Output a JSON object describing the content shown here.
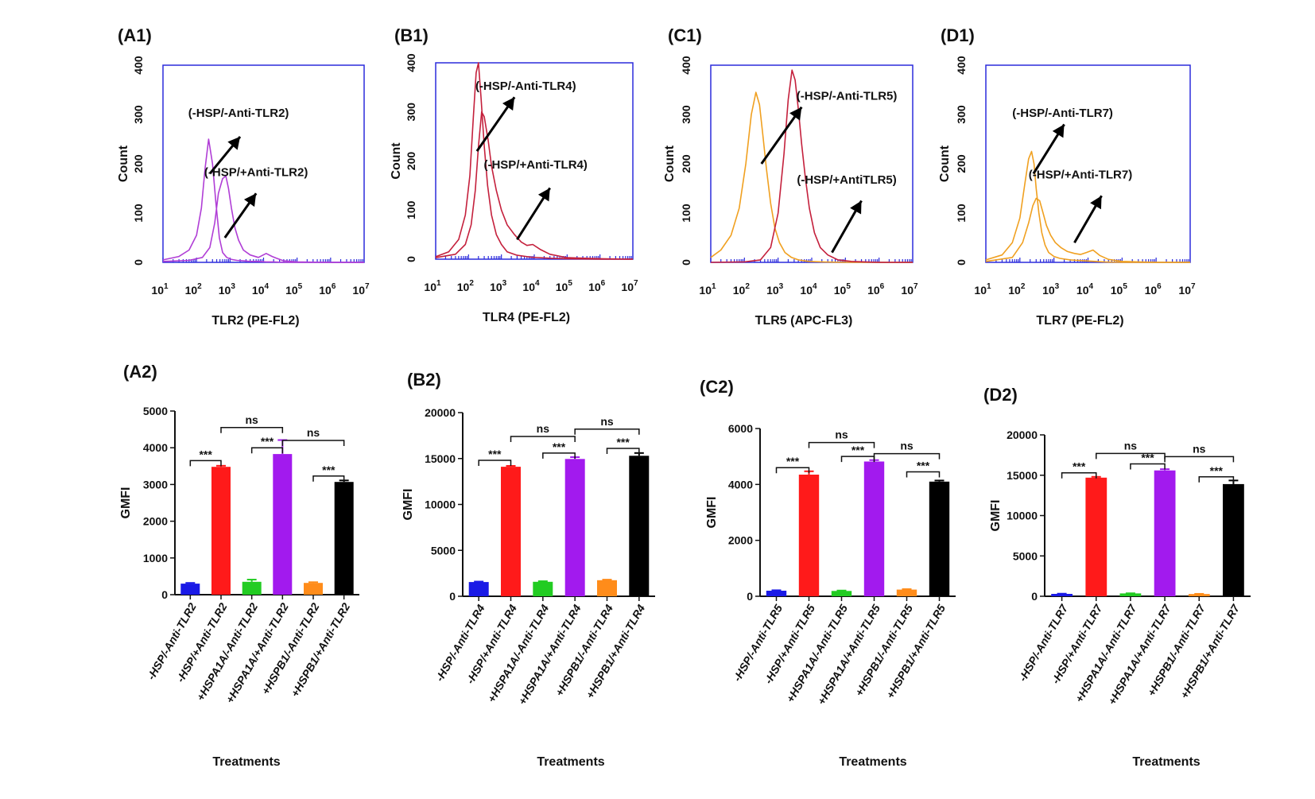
{
  "colors": {
    "frame": "#2b2bdc",
    "arrow": "#000000",
    "bar_palette": [
      "#1a1ae6",
      "#ff1a1a",
      "#22cc22",
      "#a21aee",
      "#ff8c1a",
      "#000000"
    ]
  },
  "chart_data": [
    {
      "id": "A1",
      "type": "line",
      "panel_label": "(A1)",
      "xlabel": "TLR2 (PE-FL2)",
      "ylabel": "Count",
      "x_scale": "log10",
      "xlim": [
        10,
        10000000
      ],
      "x_tick_exponents": [
        1,
        2,
        3,
        4,
        5,
        6,
        7
      ],
      "ylim": [
        0,
        400
      ],
      "y_ticks": [
        0,
        100,
        200,
        300,
        400
      ],
      "grid": false,
      "line_color": "#b03ed6",
      "series": [
        {
          "x": [
            10,
            30,
            60,
            100,
            140,
            180,
            230,
            300,
            380,
            480,
            600,
            800,
            1100,
            1600,
            2500,
            4000,
            7000,
            12000,
            20000,
            40000,
            100000,
            1000000,
            10000000
          ],
          "y": [
            5,
            12,
            25,
            55,
            110,
            190,
            250,
            200,
            120,
            50,
            20,
            10,
            6,
            4,
            3,
            2,
            2,
            1,
            1,
            0,
            0,
            0,
            0
          ]
        },
        {
          "x": [
            10,
            60,
            150,
            250,
            350,
            450,
            600,
            750,
            900,
            1100,
            1400,
            1800,
            2500,
            4000,
            7000,
            12000,
            18000,
            25000,
            40000,
            100000,
            1000000,
            10000000
          ],
          "y": [
            2,
            4,
            10,
            30,
            80,
            140,
            170,
            175,
            150,
            110,
            70,
            45,
            25,
            15,
            10,
            18,
            12,
            8,
            3,
            1,
            0,
            0
          ]
        }
      ],
      "annotations": [
        {
          "text": "(-HSP/-Anti-TLR2)",
          "x": 1800,
          "y": 295,
          "arrow_from": [
            250,
            180
          ],
          "arrow_to": [
            2000,
            255
          ]
        },
        {
          "text": "(-HSP/+Anti-TLR2)",
          "x": 6000,
          "y": 175,
          "arrow_from": [
            700,
            50
          ],
          "arrow_to": [
            6000,
            140
          ]
        }
      ]
    },
    {
      "id": "B1",
      "type": "line",
      "panel_label": "(B1)",
      "xlabel": "TLR4 (PE-FL2)",
      "ylabel": "Count",
      "x_scale": "log10",
      "xlim": [
        10,
        10000000
      ],
      "x_tick_exponents": [
        1,
        2,
        3,
        4,
        5,
        6,
        7
      ],
      "ylim": [
        0,
        400
      ],
      "y_ticks": [
        0,
        100,
        200,
        300,
        400
      ],
      "grid": false,
      "line_color": "#c4203c",
      "series": [
        {
          "x": [
            10,
            25,
            50,
            80,
            110,
            140,
            170,
            200,
            240,
            300,
            380,
            500,
            700,
            1000,
            1500,
            3000,
            8000,
            30000,
            100000,
            1000000,
            10000000
          ],
          "y": [
            5,
            15,
            40,
            90,
            170,
            290,
            380,
            400,
            330,
            230,
            150,
            90,
            50,
            30,
            15,
            8,
            4,
            2,
            1,
            0,
            0
          ]
        },
        {
          "x": [
            10,
            40,
            80,
            120,
            160,
            200,
            250,
            300,
            400,
            500,
            700,
            1000,
            1500,
            2500,
            4000,
            6000,
            9000,
            15000,
            30000,
            100000,
            1000000,
            10000000
          ],
          "y": [
            3,
            10,
            30,
            70,
            140,
            230,
            300,
            290,
            240,
            190,
            140,
            100,
            70,
            50,
            35,
            28,
            30,
            20,
            10,
            3,
            1,
            0
          ]
        }
      ],
      "annotations": [
        {
          "text": "(-HSP/-Anti-TLR4)",
          "x": 5500,
          "y": 345,
          "arrow_from": [
            180,
            220
          ],
          "arrow_to": [
            2500,
            330
          ]
        },
        {
          "text": "(-HSP/+Anti-TLR4)",
          "x": 11000,
          "y": 185,
          "arrow_from": [
            3000,
            40
          ],
          "arrow_to": [
            30000,
            145
          ]
        }
      ]
    },
    {
      "id": "C1",
      "type": "line",
      "panel_label": "(C1)",
      "xlabel": "TLR5 (APC-FL3)",
      "ylabel": "Count",
      "x_scale": "log10",
      "xlim": [
        10,
        10000000
      ],
      "x_tick_exponents": [
        1,
        2,
        3,
        4,
        5,
        6,
        7
      ],
      "ylim": [
        0,
        400
      ],
      "y_ticks": [
        0,
        100,
        200,
        300,
        400
      ],
      "grid": false,
      "series": [
        {
          "color": "#f0a020",
          "x": [
            10,
            20,
            40,
            70,
            110,
            160,
            220,
            280,
            350,
            450,
            600,
            800,
            1100,
            1600,
            2500,
            4000,
            8000,
            20000,
            100000,
            1000000,
            10000000
          ],
          "y": [
            10,
            25,
            55,
            110,
            200,
            300,
            345,
            320,
            260,
            190,
            120,
            70,
            40,
            20,
            10,
            5,
            2,
            1,
            0,
            0,
            0
          ]
        },
        {
          "color": "#c4203c",
          "x": [
            10,
            100,
            300,
            600,
            1000,
            1500,
            2000,
            2600,
            3200,
            4000,
            5000,
            6500,
            8500,
            12000,
            18000,
            30000,
            60000,
            150000,
            1000000,
            10000000
          ],
          "y": [
            0,
            1,
            5,
            30,
            100,
            220,
            330,
            390,
            370,
            310,
            240,
            170,
            110,
            60,
            30,
            15,
            5,
            2,
            0,
            0
          ]
        }
      ],
      "annotations": [
        {
          "text": "(-HSP/-Anti-TLR5)",
          "x": 110000,
          "y": 330,
          "arrow_from": [
            320,
            200
          ],
          "arrow_to": [
            5000,
            315
          ]
        },
        {
          "text": "(-HSP/+AntiTLR5)",
          "x": 110000,
          "y": 160,
          "arrow_from": [
            40000,
            20
          ],
          "arrow_to": [
            300000,
            125
          ]
        }
      ]
    },
    {
      "id": "D1",
      "type": "line",
      "panel_label": "(D1)",
      "xlabel": "TLR7 (PE-FL2)",
      "ylabel": "Count",
      "x_scale": "log10",
      "xlim": [
        10,
        10000000
      ],
      "x_tick_exponents": [
        1,
        2,
        3,
        4,
        5,
        6,
        7
      ],
      "ylim": [
        0,
        400
      ],
      "y_ticks": [
        0,
        100,
        200,
        300,
        400
      ],
      "grid": false,
      "line_color": "#f0a020",
      "series": [
        {
          "x": [
            10,
            30,
            60,
            100,
            140,
            180,
            220,
            260,
            300,
            360,
            440,
            550,
            700,
            1000,
            1500,
            3000,
            8000,
            30000,
            100000,
            1000000,
            10000000
          ],
          "y": [
            5,
            15,
            40,
            90,
            160,
            210,
            225,
            200,
            150,
            100,
            60,
            35,
            20,
            12,
            8,
            5,
            3,
            1,
            0,
            0,
            0
          ]
        },
        {
          "x": [
            10,
            60,
            120,
            180,
            240,
            300,
            380,
            480,
            600,
            800,
            1100,
            1600,
            2500,
            4000,
            6000,
            9000,
            14000,
            22000,
            40000,
            100000,
            1000000,
            10000000
          ],
          "y": [
            2,
            10,
            40,
            80,
            115,
            130,
            125,
            100,
            75,
            55,
            40,
            30,
            22,
            18,
            16,
            20,
            25,
            14,
            6,
            2,
            0,
            0
          ]
        }
      ],
      "annotations": [
        {
          "text": "(-HSP/-Anti-TLR7)",
          "x": 1800,
          "y": 295,
          "arrow_from": [
            250,
            180
          ],
          "arrow_to": [
            2000,
            280
          ]
        },
        {
          "text": "(-HSP/+Anti-TLR7)",
          "x": 6000,
          "y": 170,
          "arrow_from": [
            4000,
            40
          ],
          "arrow_to": [
            25000,
            135
          ]
        }
      ]
    },
    {
      "id": "A2",
      "type": "bar",
      "panel_label": "(A2)",
      "xlabel": "Treatments",
      "ylabel": "GMFI",
      "ylim": [
        0,
        5000
      ],
      "y_ticks": [
        0,
        1000,
        2000,
        3000,
        4000,
        5000
      ],
      "grid": false,
      "categories": [
        "-HSP/-Anti-TLR2",
        "-HSP/+Anti-TLR2",
        "+HSPA1A/-Anti-TLR2",
        "+HSPA1A/+Anti-TLR2",
        "+HSPB1/-Anti-TLR2",
        "+HSPB1/+Anti-TLR2"
      ],
      "values": [
        300,
        3480,
        350,
        3830,
        320,
        3070
      ],
      "errors": [
        20,
        30,
        60,
        380,
        20,
        40
      ],
      "significance": [
        {
          "from": 0,
          "to": 1,
          "label": "***",
          "y": 3650
        },
        {
          "from": 1,
          "to": 3,
          "label": "ns",
          "y": 4550
        },
        {
          "from": 2,
          "to": 3,
          "label": "***",
          "y": 4000
        },
        {
          "from": 3,
          "to": 5,
          "label": "ns",
          "y": 4200
        },
        {
          "from": 4,
          "to": 5,
          "label": "***",
          "y": 3230
        }
      ]
    },
    {
      "id": "B2",
      "type": "bar",
      "panel_label": "(B2)",
      "xlabel": "Treatments",
      "ylabel": "GMFI",
      "ylim": [
        0,
        20000
      ],
      "y_ticks": [
        0,
        5000,
        10000,
        15000,
        20000
      ],
      "grid": false,
      "categories": [
        "-HSP/-Anti-TLR4",
        "-HSP/+Anti-TLR4",
        "+HSPA1A/-Anti-TLR4",
        "+HSPA1A/+Anti-TLR4",
        "+HSPB1/-Anti-TLR4",
        "+HSPB1/+Anti-TLR4"
      ],
      "values": [
        1550,
        14100,
        1580,
        14950,
        1750,
        15300
      ],
      "errors": [
        50,
        100,
        60,
        200,
        60,
        300
      ],
      "significance": [
        {
          "from": 0,
          "to": 1,
          "label": "***",
          "y": 14800
        },
        {
          "from": 1,
          "to": 3,
          "label": "ns",
          "y": 17400
        },
        {
          "from": 2,
          "to": 3,
          "label": "***",
          "y": 15600
        },
        {
          "from": 3,
          "to": 5,
          "label": "ns",
          "y": 18200
        },
        {
          "from": 4,
          "to": 5,
          "label": "***",
          "y": 16100
        }
      ]
    },
    {
      "id": "C2",
      "type": "bar",
      "panel_label": "(C2)",
      "xlabel": "Treatments",
      "ylabel": "GMFI",
      "ylim": [
        0,
        6000
      ],
      "y_ticks": [
        0,
        2000,
        4000,
        6000
      ],
      "grid": false,
      "categories": [
        "-HSP/-Anti-TLR5",
        "-HSP/+Anti-TLR5",
        "+HSPA1A/-Anti-TLR5",
        "+HSPA1A/+Anti-TLR5",
        "+HSPB1/-Anti-TLR5",
        "+HSPB1/+Anti-TLR5"
      ],
      "values": [
        200,
        4350,
        190,
        4820,
        240,
        4100
      ],
      "errors": [
        15,
        120,
        15,
        50,
        15,
        40
      ],
      "significance": [
        {
          "from": 0,
          "to": 1,
          "label": "***",
          "y": 4600
        },
        {
          "from": 1,
          "to": 3,
          "label": "ns",
          "y": 5500
        },
        {
          "from": 2,
          "to": 3,
          "label": "***",
          "y": 5000
        },
        {
          "from": 3,
          "to": 5,
          "label": "ns",
          "y": 5100
        },
        {
          "from": 4,
          "to": 5,
          "label": "***",
          "y": 4450
        }
      ]
    },
    {
      "id": "D2",
      "type": "bar",
      "panel_label": "(D2)",
      "xlabel": "Treatments",
      "ylabel": "GMFI",
      "ylim": [
        0,
        20000
      ],
      "y_ticks": [
        0,
        5000,
        10000,
        15000,
        20000
      ],
      "grid": false,
      "categories": [
        "-HSP/-Anti-TLR7",
        "-HSP/+Anti-TLR7",
        "+HSPA1A/-Anti-TLR7",
        "+HSPA1A/+Anti-TLR7",
        "+HSPB1/-Anti-TLR7",
        "+HSPB1/+Anti-TLR7"
      ],
      "values": [
        300,
        14700,
        350,
        15600,
        280,
        13900
      ],
      "errors": [
        20,
        100,
        20,
        150,
        20,
        450
      ],
      "significance": [
        {
          "from": 0,
          "to": 1,
          "label": "***",
          "y": 15300
        },
        {
          "from": 1,
          "to": 3,
          "label": "ns",
          "y": 17700
        },
        {
          "from": 2,
          "to": 3,
          "label": "***",
          "y": 16400
        },
        {
          "from": 3,
          "to": 5,
          "label": "ns",
          "y": 17300
        },
        {
          "from": 4,
          "to": 5,
          "label": "***",
          "y": 14800
        }
      ]
    }
  ]
}
